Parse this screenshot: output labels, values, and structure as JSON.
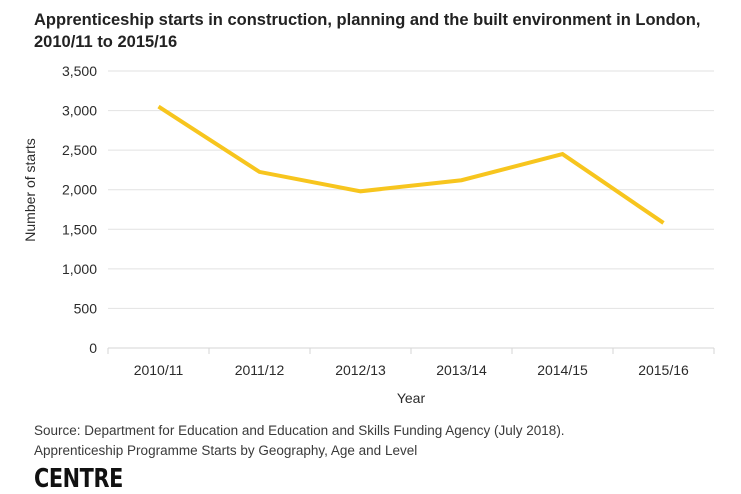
{
  "title": "Apprenticeship starts in construction, planning and the built environment in London, 2010/11 to 2015/16",
  "source_line1": "Source: Department for Education and Education and Skills Funding Agency (July 2018).",
  "source_line2": "Apprenticeship Programme Starts by Geography, Age and Level",
  "logo_text": "CENTRE",
  "colors": {
    "line": "#F7C51E",
    "grid": "#e2e2e2",
    "text": "#2b2b2b"
  },
  "chart_data": {
    "type": "line",
    "title": "Apprenticeship starts in construction, planning and the built environment in London, 2010/11 to 2015/16",
    "xlabel": "Year",
    "ylabel": "Number of starts",
    "categories": [
      "2010/11",
      "2011/12",
      "2012/13",
      "2013/14",
      "2014/15",
      "2015/16"
    ],
    "series": [
      {
        "name": "Apprenticeship starts",
        "values": [
          3050,
          2225,
          1980,
          2120,
          2450,
          1580
        ]
      }
    ],
    "ylim": [
      0,
      3500
    ],
    "yticks": [
      0,
      500,
      1000,
      1500,
      2000,
      2500,
      3000,
      3500
    ],
    "ytick_labels": [
      "0",
      "500",
      "1,000",
      "1,500",
      "2,000",
      "2,500",
      "3,000",
      "3,500"
    ],
    "grid": true,
    "legend": "none"
  }
}
